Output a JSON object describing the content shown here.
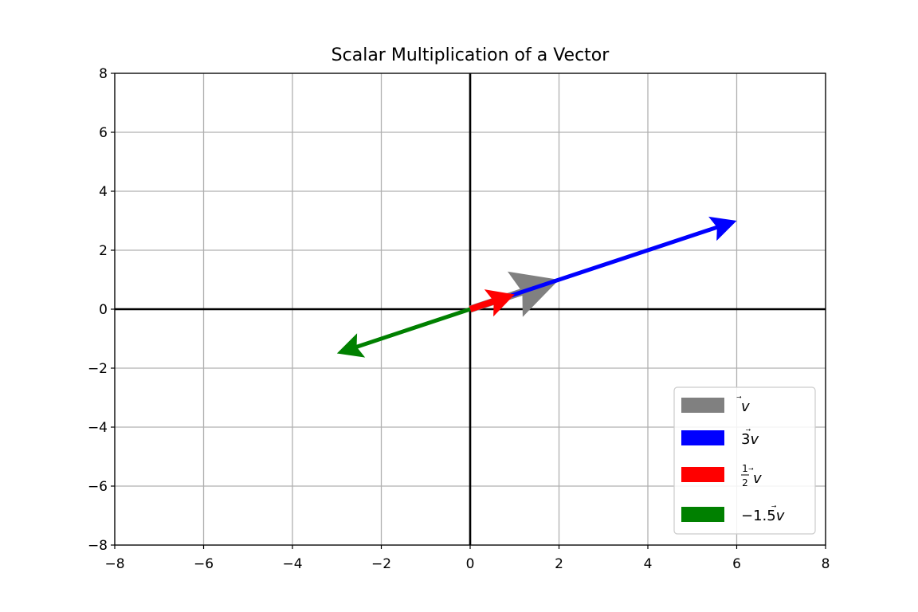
{
  "chart_data": {
    "type": "quiver",
    "title": "Scalar Multiplication of a Vector",
    "xlabel": "",
    "ylabel": "",
    "xlim": [
      -8,
      8
    ],
    "ylim": [
      -8,
      8
    ],
    "xticks": [
      -8,
      -6,
      -4,
      -2,
      0,
      2,
      4,
      6,
      8
    ],
    "yticks": [
      -8,
      -6,
      -4,
      -2,
      0,
      2,
      4,
      6,
      8
    ],
    "xtick_labels": [
      "−8",
      "−6",
      "−4",
      "−2",
      "0",
      "2",
      "4",
      "6",
      "8"
    ],
    "ytick_labels": [
      "−8",
      "−6",
      "−4",
      "−2",
      "0",
      "2",
      "4",
      "6",
      "8"
    ],
    "grid": true,
    "legend_position": "lower-right",
    "vectors": [
      {
        "name": "v⃗",
        "origin": [
          0,
          0
        ],
        "components": [
          2,
          1
        ],
        "color": "#808080"
      },
      {
        "name": "3v⃗",
        "origin": [
          0,
          0
        ],
        "components": [
          6,
          3
        ],
        "color": "#0000ff"
      },
      {
        "name": "½v⃗",
        "origin": [
          0,
          0
        ],
        "components": [
          1,
          0.5
        ],
        "color": "#ff0000"
      },
      {
        "name": "−1.5v⃗",
        "origin": [
          0,
          0
        ],
        "components": [
          -3,
          -1.5
        ],
        "color": "#008000"
      }
    ]
  }
}
